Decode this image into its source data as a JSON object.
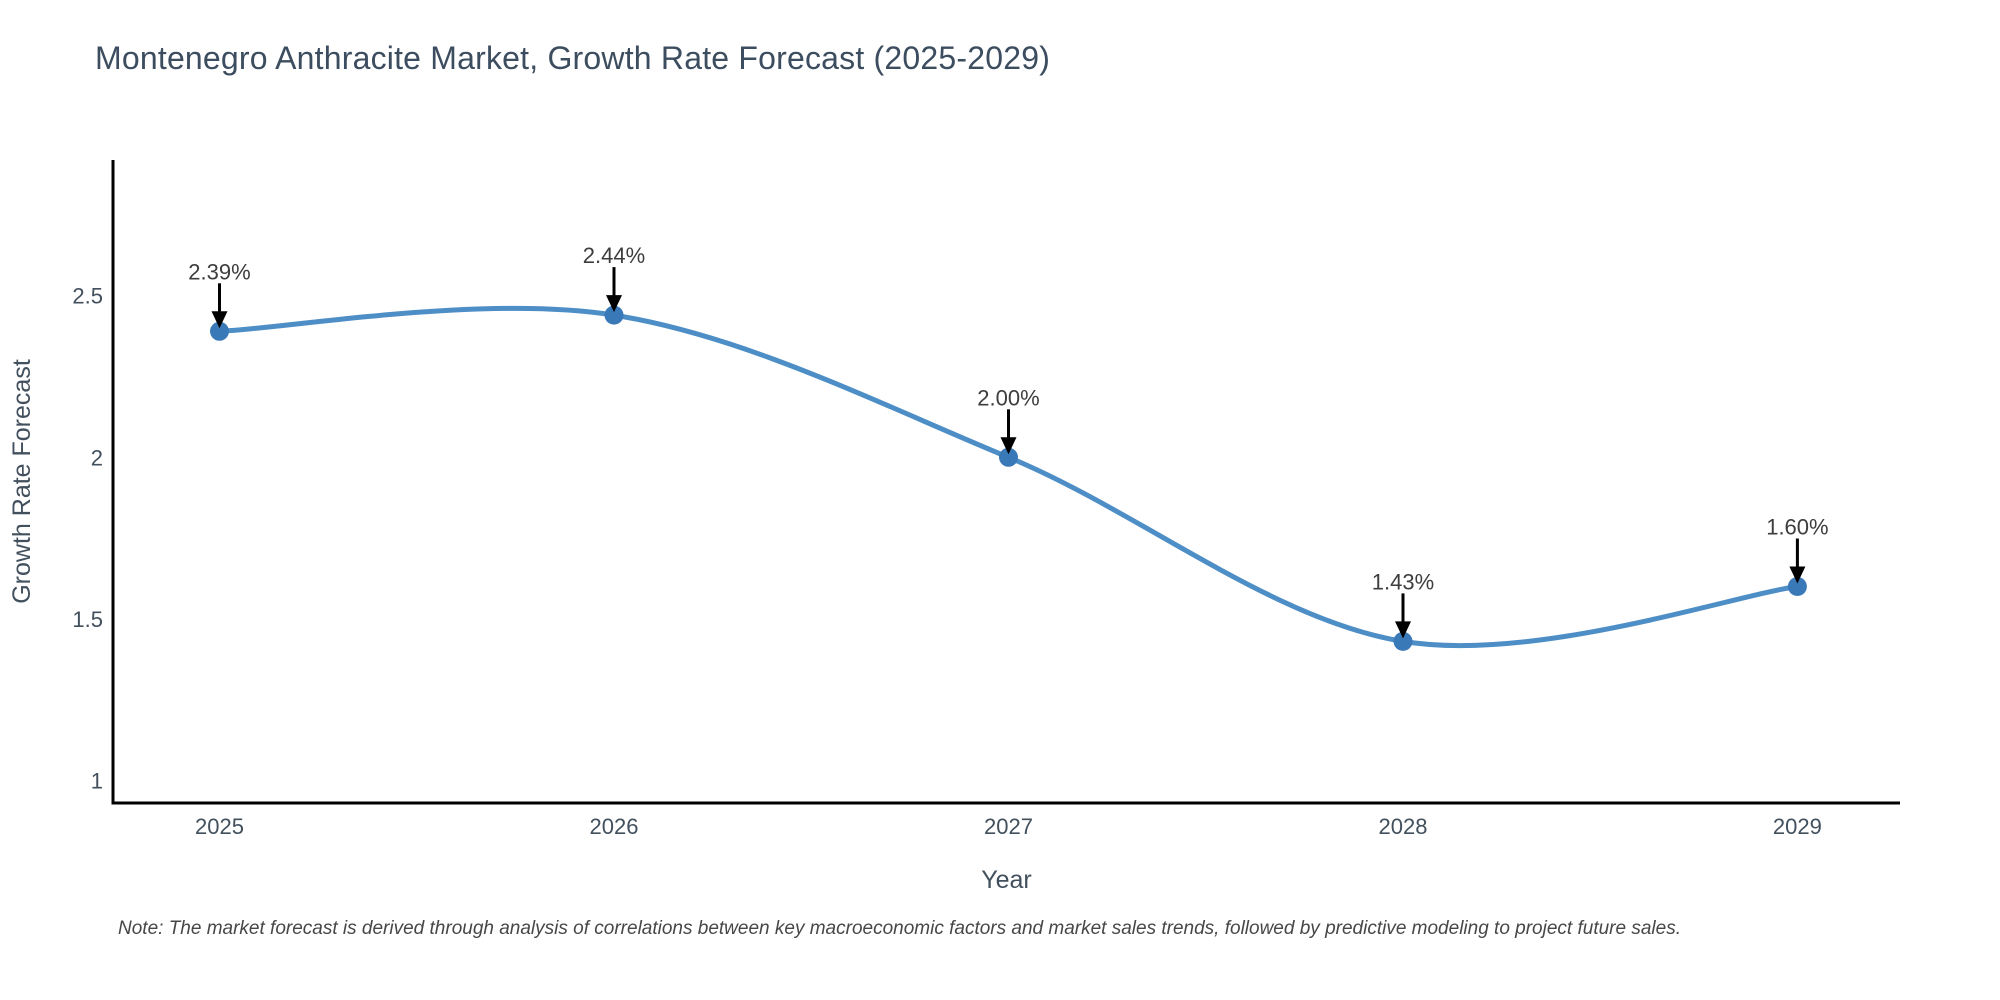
{
  "title": "Montenegro Anthracite Market, Growth Rate Forecast (2025-2029)",
  "note": "Note: The market forecast is derived through analysis of correlations between key macroeconomic factors and market sales trends, followed by predictive modeling to project future sales.",
  "chart_data": {
    "type": "line",
    "title": "Montenegro Anthracite Market, Growth Rate Forecast (2025-2029)",
    "xlabel": "Year",
    "ylabel": "Growth Rate Forecast",
    "x": [
      2025,
      2026,
      2027,
      2028,
      2029
    ],
    "values": [
      2.39,
      2.44,
      2.0,
      1.43,
      1.6
    ],
    "point_labels": [
      "2.39%",
      "2.44%",
      "2.00%",
      "1.43%",
      "1.60%"
    ],
    "xtick_labels": [
      "2025",
      "2026",
      "2027",
      "2028",
      "2029"
    ],
    "yticks": [
      1,
      1.5,
      2,
      2.5
    ],
    "ytick_labels": [
      "1",
      "1.5",
      "2",
      "2.5"
    ],
    "xlim": [
      2024.73,
      2029.26
    ],
    "ylim": [
      0.93,
      2.92
    ],
    "grid": false,
    "legend": "none",
    "line_shape": "spline",
    "colors": {
      "line": "#4e8ec6",
      "marker": "#3a79b8",
      "axis": "#000000",
      "arrow": "#000000",
      "title_text": "#3c4d5f",
      "tick_text": "#42505e",
      "annotation_text": "#3d3d3d",
      "note_text": "#474747",
      "background": "#ffffff"
    }
  }
}
